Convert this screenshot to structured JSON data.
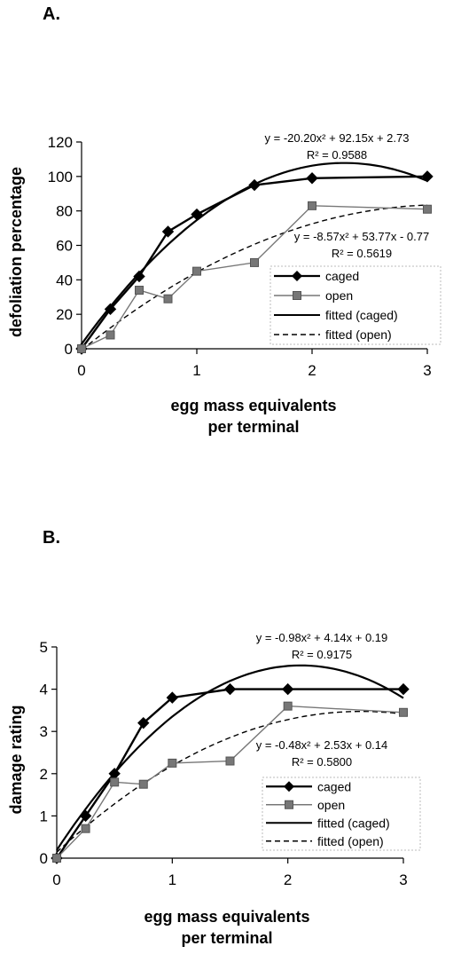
{
  "chart_data": [
    {
      "type": "line",
      "panel_label": "A.",
      "xlabel": [
        "egg  mass  equivalents",
        "per  terminal"
      ],
      "ylabel": "defoliation   percentage",
      "xlim": [
        0,
        3
      ],
      "ylim": [
        0,
        120
      ],
      "xticks": [
        "0",
        "1",
        "2",
        "3"
      ],
      "yticks": [
        "0",
        "20",
        "40",
        "60",
        "80",
        "100",
        "120"
      ],
      "series": [
        {
          "name": "caged",
          "kind": "markers",
          "marker": "diamond",
          "color": "#000000",
          "x": [
            0,
            0.25,
            0.5,
            0.75,
            1,
            1.5,
            2,
            3
          ],
          "y": [
            0,
            23,
            42,
            68,
            78,
            95,
            99,
            100
          ]
        },
        {
          "name": "open",
          "kind": "markers",
          "marker": "square",
          "color": "#777777",
          "x": [
            0,
            0.25,
            0.5,
            0.75,
            1,
            1.5,
            2,
            3
          ],
          "y": [
            0,
            8,
            34,
            29,
            45,
            50,
            83,
            81
          ]
        },
        {
          "name": "fitted (caged)",
          "kind": "fit",
          "dash": false,
          "coef": [
            -20.2,
            92.15,
            2.73
          ]
        },
        {
          "name": "fitted (open)",
          "kind": "fit",
          "dash": true,
          "coef": [
            -8.57,
            53.77,
            -0.77
          ]
        }
      ],
      "equations": [
        {
          "eq": "y = -20.20x² + 92.15x + 2.73",
          "r2": "R² = 0.9588"
        },
        {
          "eq": "y = -8.57x² + 53.77x - 0.77",
          "r2": "R² = 0.5619"
        }
      ],
      "legend_position": "lower-right"
    },
    {
      "type": "line",
      "panel_label": "B.",
      "xlabel": [
        "egg  mass  equivalents",
        "per  terminal"
      ],
      "ylabel": "damage   rating",
      "xlim": [
        0,
        3
      ],
      "ylim": [
        0,
        5
      ],
      "xticks": [
        "0",
        "1",
        "2",
        "3"
      ],
      "yticks": [
        "0",
        "1",
        "2",
        "3",
        "4",
        "5"
      ],
      "series": [
        {
          "name": "caged",
          "kind": "markers",
          "marker": "diamond",
          "color": "#000000",
          "x": [
            0,
            0.25,
            0.5,
            0.75,
            1,
            1.5,
            2,
            3
          ],
          "y": [
            0,
            1.0,
            2.0,
            3.2,
            3.8,
            4.0,
            4.0,
            4.0
          ]
        },
        {
          "name": "open",
          "kind": "markers",
          "marker": "square",
          "color": "#777777",
          "x": [
            0,
            0.25,
            0.5,
            0.75,
            1,
            1.5,
            2,
            3
          ],
          "y": [
            0,
            0.7,
            1.8,
            1.75,
            2.25,
            2.3,
            3.6,
            3.45
          ]
        },
        {
          "name": "fitted (caged)",
          "kind": "fit",
          "dash": false,
          "coef": [
            -0.98,
            4.14,
            0.19
          ]
        },
        {
          "name": "fitted (open)",
          "kind": "fit",
          "dash": true,
          "coef": [
            -0.48,
            2.53,
            0.14
          ]
        }
      ],
      "equations": [
        {
          "eq": "y = -0.98x² + 4.14x + 0.19",
          "r2": "R² = 0.9175"
        },
        {
          "eq": "y = -0.48x² + 2.53x + 0.14",
          "r2": "R² = 0.5800"
        }
      ],
      "legend_position": "lower-right"
    }
  ]
}
